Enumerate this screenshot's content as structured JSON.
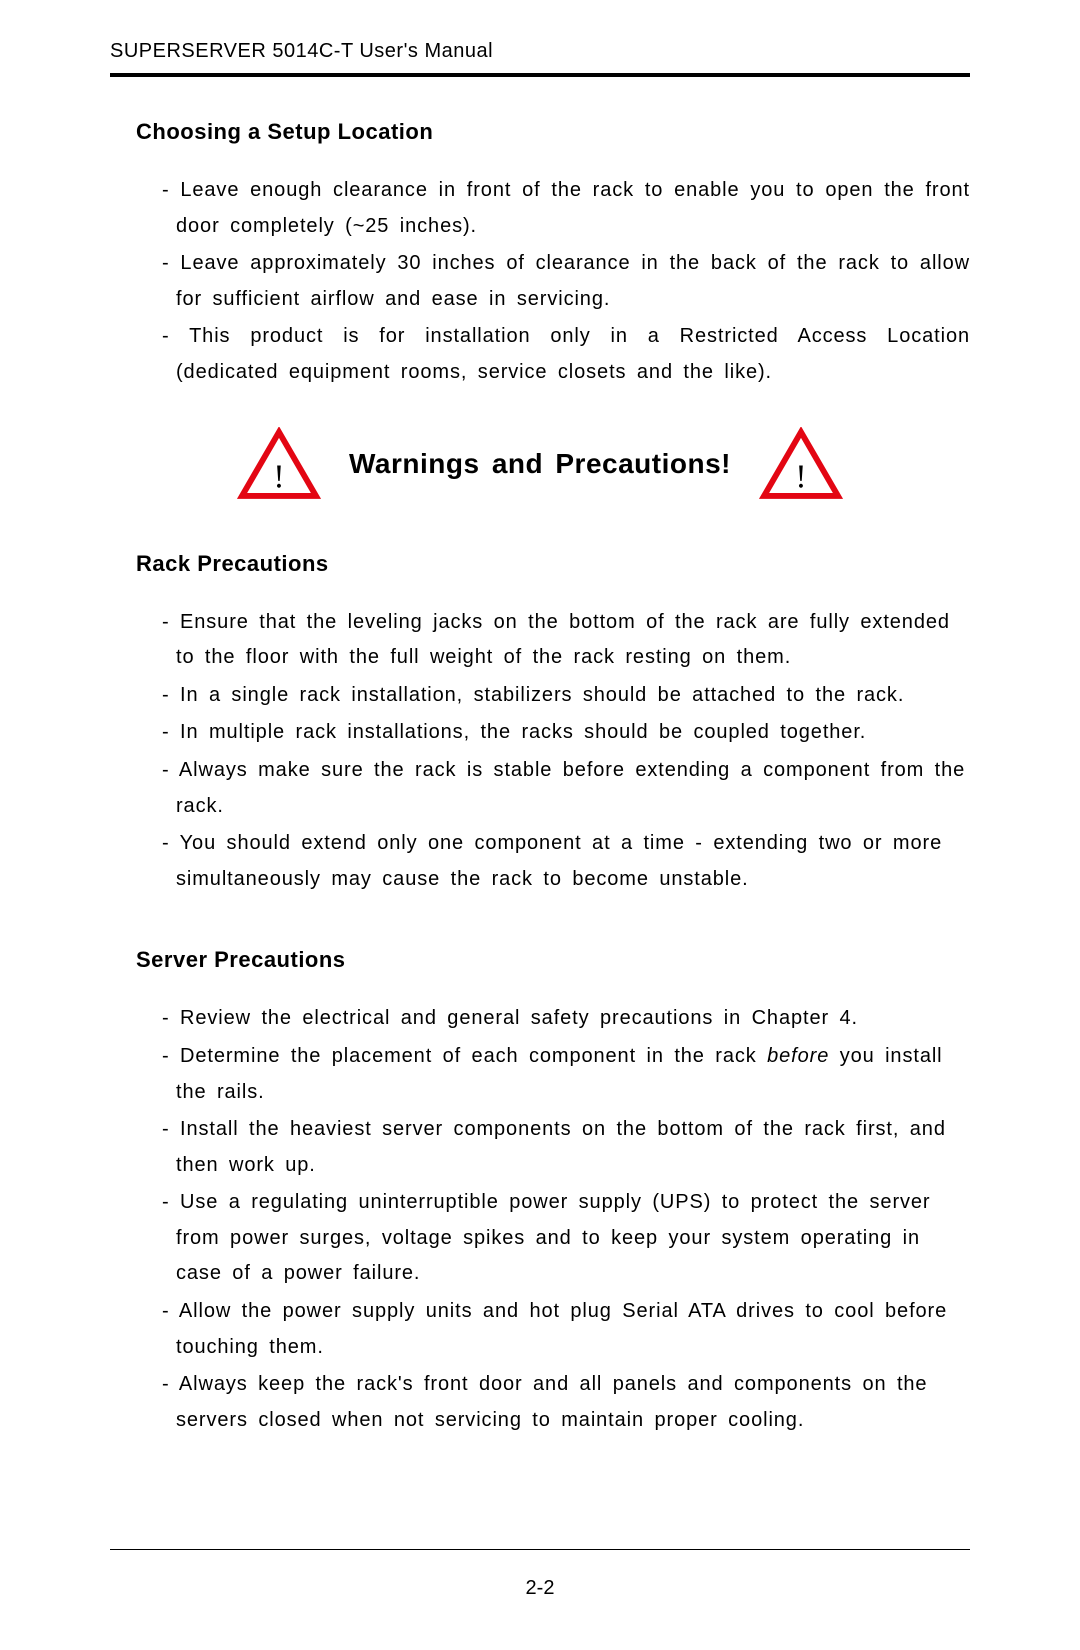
{
  "header": {
    "running_head": "SUPERSERVER 5014C-T User's Manual"
  },
  "sections": {
    "setup": {
      "heading": "Choosing a Setup Location",
      "items": [
        "Leave enough clearance in front of the rack to enable you to open the front door completely (~25 inches).",
        "Leave approximately 30 inches of clearance in the back of the rack to allow for sufficient airflow and ease in servicing.",
        "This product is for installation only in a Restricted Access Location (dedicated equipment rooms, service closets and the like)."
      ]
    },
    "warnings": {
      "title": "Warnings and Precautions!",
      "icon_color": "#e30613",
      "icon_stroke_width": 7
    },
    "rack": {
      "heading": "Rack Precautions",
      "items": [
        "Ensure that the leveling jacks on the bottom of the rack are fully extended to the floor with the full weight of the rack resting on them.",
        "In a single rack installation, stabilizers should be attached to the rack.",
        "In multiple rack installations, the racks should be coupled together.",
        "Always make sure the rack is stable before extending a component from the rack.",
        "You should extend only one component at a time - extending two or more simultaneously may cause the rack to become unstable."
      ]
    },
    "server": {
      "heading": "Server Precautions",
      "items": [
        "Review the electrical and general safety precautions in Chapter 4.",
        "Determine the placement of each component in the rack <em class=\"ital\">before</em> you install the rails.",
        "Install the heaviest server components on the bottom of the rack first, and then work up.",
        "Use a regulating uninterruptible power supply (UPS) to protect the server from power surges, voltage spikes and to keep your system operating in case of a power failure.",
        "Allow the power supply units and hot plug Serial ATA drives to cool before touching them.",
        "Always keep the rack's front door and all panels and components on the servers closed when not servicing to maintain proper cooling."
      ]
    }
  },
  "footer": {
    "page_number": "2-2"
  }
}
